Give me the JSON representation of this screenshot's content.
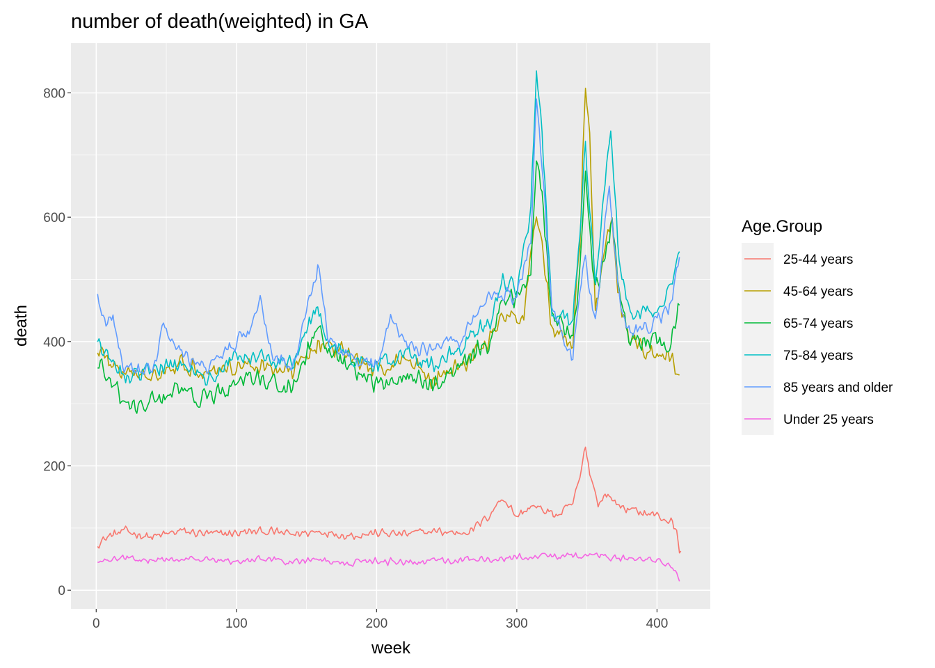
{
  "chart_data": {
    "type": "line",
    "title": "number of death(weighted) in GA",
    "xlabel": "week",
    "ylabel": "death",
    "xlim": [
      -18,
      438
    ],
    "ylim": [
      -30,
      880
    ],
    "x_ticks": [
      0,
      100,
      200,
      300,
      400
    ],
    "y_ticks": [
      0,
      200,
      400,
      600,
      800
    ],
    "x_tick_labels": [
      "0",
      "100",
      "200",
      "300",
      "400"
    ],
    "y_tick_labels": [
      "0",
      "200",
      "400",
      "600",
      "800"
    ],
    "grid": true,
    "legend": {
      "title": "Age.Group",
      "position": "right"
    },
    "series": [
      {
        "name": "25-44 years",
        "color": "#F8766D",
        "knots": [
          [
            1,
            75
          ],
          [
            10,
            88
          ],
          [
            20,
            95
          ],
          [
            40,
            85
          ],
          [
            60,
            95
          ],
          [
            80,
            90
          ],
          [
            100,
            92
          ],
          [
            120,
            95
          ],
          [
            140,
            90
          ],
          [
            160,
            95
          ],
          [
            180,
            88
          ],
          [
            200,
            92
          ],
          [
            220,
            90
          ],
          [
            240,
            95
          ],
          [
            260,
            92
          ],
          [
            270,
            100
          ],
          [
            280,
            120
          ],
          [
            290,
            150
          ],
          [
            300,
            118
          ],
          [
            310,
            135
          ],
          [
            320,
            128
          ],
          [
            330,
            120
          ],
          [
            340,
            140
          ],
          [
            345,
            180
          ],
          [
            349,
            232
          ],
          [
            352,
            190
          ],
          [
            358,
            140
          ],
          [
            365,
            155
          ],
          [
            370,
            140
          ],
          [
            380,
            130
          ],
          [
            390,
            125
          ],
          [
            400,
            120
          ],
          [
            410,
            110
          ],
          [
            414,
            95
          ],
          [
            416,
            60
          ],
          [
            417,
            62
          ]
        ],
        "noise": 9
      },
      {
        "name": "45-64 years",
        "color": "#B79F00",
        "knots": [
          [
            1,
            390
          ],
          [
            10,
            365
          ],
          [
            20,
            345
          ],
          [
            40,
            350
          ],
          [
            60,
            365
          ],
          [
            80,
            352
          ],
          [
            100,
            362
          ],
          [
            120,
            360
          ],
          [
            140,
            350
          ],
          [
            158,
            400
          ],
          [
            165,
            390
          ],
          [
            180,
            380
          ],
          [
            200,
            352
          ],
          [
            220,
            375
          ],
          [
            240,
            340
          ],
          [
            260,
            362
          ],
          [
            280,
            400
          ],
          [
            290,
            440
          ],
          [
            300,
            435
          ],
          [
            305,
            445
          ],
          [
            310,
            550
          ],
          [
            314,
            600
          ],
          [
            318,
            560
          ],
          [
            325,
            420
          ],
          [
            340,
            395
          ],
          [
            345,
            560
          ],
          [
            349,
            820
          ],
          [
            352,
            720
          ],
          [
            356,
            450
          ],
          [
            362,
            530
          ],
          [
            368,
            600
          ],
          [
            372,
            480
          ],
          [
            380,
            400
          ],
          [
            400,
            375
          ],
          [
            410,
            375
          ],
          [
            416,
            345
          ]
        ],
        "noise": 18
      },
      {
        "name": "65-74 years",
        "color": "#00BA38",
        "knots": [
          [
            1,
            365
          ],
          [
            10,
            335
          ],
          [
            20,
            300
          ],
          [
            30,
            290
          ],
          [
            40,
            305
          ],
          [
            60,
            320
          ],
          [
            80,
            305
          ],
          [
            100,
            335
          ],
          [
            120,
            340
          ],
          [
            140,
            322
          ],
          [
            158,
            420
          ],
          [
            165,
            385
          ],
          [
            180,
            360
          ],
          [
            200,
            330
          ],
          [
            220,
            345
          ],
          [
            240,
            330
          ],
          [
            260,
            360
          ],
          [
            275,
            395
          ],
          [
            280,
            395
          ],
          [
            290,
            470
          ],
          [
            300,
            470
          ],
          [
            310,
            515
          ],
          [
            314,
            690
          ],
          [
            318,
            640
          ],
          [
            325,
            450
          ],
          [
            340,
            400
          ],
          [
            345,
            520
          ],
          [
            349,
            680
          ],
          [
            352,
            580
          ],
          [
            356,
            475
          ],
          [
            368,
            595
          ],
          [
            372,
            500
          ],
          [
            380,
            400
          ],
          [
            400,
            400
          ],
          [
            410,
            395
          ],
          [
            416,
            460
          ]
        ],
        "noise": 20
      },
      {
        "name": "75-84 years",
        "color": "#00BFC4",
        "knots": [
          [
            1,
            405
          ],
          [
            10,
            375
          ],
          [
            20,
            345
          ],
          [
            40,
            355
          ],
          [
            60,
            365
          ],
          [
            80,
            340
          ],
          [
            100,
            378
          ],
          [
            120,
            375
          ],
          [
            140,
            365
          ],
          [
            158,
            455
          ],
          [
            165,
            400
          ],
          [
            180,
            375
          ],
          [
            200,
            360
          ],
          [
            220,
            380
          ],
          [
            240,
            360
          ],
          [
            260,
            390
          ],
          [
            275,
            425
          ],
          [
            280,
            430
          ],
          [
            290,
            500
          ],
          [
            300,
            485
          ],
          [
            310,
            610
          ],
          [
            314,
            835
          ],
          [
            318,
            740
          ],
          [
            325,
            450
          ],
          [
            340,
            430
          ],
          [
            345,
            580
          ],
          [
            349,
            720
          ],
          [
            352,
            600
          ],
          [
            356,
            500
          ],
          [
            367,
            755
          ],
          [
            372,
            560
          ],
          [
            380,
            440
          ],
          [
            400,
            455
          ],
          [
            410,
            490
          ],
          [
            416,
            545
          ]
        ],
        "noise": 18
      },
      {
        "name": "85 years and older",
        "color": "#619CFF",
        "knots": [
          [
            1,
            480
          ],
          [
            6,
            430
          ],
          [
            12,
            440
          ],
          [
            20,
            350
          ],
          [
            40,
            352
          ],
          [
            48,
            420
          ],
          [
            60,
            380
          ],
          [
            80,
            355
          ],
          [
            100,
            400
          ],
          [
            110,
            420
          ],
          [
            117,
            470
          ],
          [
            125,
            375
          ],
          [
            140,
            360
          ],
          [
            158,
            520
          ],
          [
            165,
            410
          ],
          [
            180,
            375
          ],
          [
            200,
            360
          ],
          [
            210,
            440
          ],
          [
            220,
            395
          ],
          [
            240,
            385
          ],
          [
            260,
            405
          ],
          [
            275,
            460
          ],
          [
            280,
            470
          ],
          [
            290,
            480
          ],
          [
            300,
            470
          ],
          [
            310,
            570
          ],
          [
            314,
            790
          ],
          [
            318,
            680
          ],
          [
            325,
            450
          ],
          [
            340,
            370
          ],
          [
            345,
            480
          ],
          [
            349,
            545
          ],
          [
            352,
            480
          ],
          [
            356,
            430
          ],
          [
            366,
            660
          ],
          [
            372,
            480
          ],
          [
            380,
            410
          ],
          [
            400,
            435
          ],
          [
            410,
            460
          ],
          [
            416,
            535
          ]
        ],
        "noise": 16
      },
      {
        "name": "Under 25 years",
        "color": "#F564E3",
        "knots": [
          [
            1,
            46
          ],
          [
            20,
            52
          ],
          [
            40,
            48
          ],
          [
            60,
            50
          ],
          [
            80,
            48
          ],
          [
            100,
            48
          ],
          [
            120,
            50
          ],
          [
            140,
            46
          ],
          [
            160,
            48
          ],
          [
            180,
            44
          ],
          [
            200,
            47
          ],
          [
            220,
            46
          ],
          [
            240,
            46
          ],
          [
            260,
            48
          ],
          [
            280,
            50
          ],
          [
            300,
            52
          ],
          [
            320,
            54
          ],
          [
            340,
            55
          ],
          [
            350,
            58
          ],
          [
            370,
            52
          ],
          [
            390,
            52
          ],
          [
            400,
            50
          ],
          [
            410,
            40
          ],
          [
            414,
            30
          ],
          [
            416,
            15
          ]
        ],
        "noise": 7
      }
    ]
  }
}
